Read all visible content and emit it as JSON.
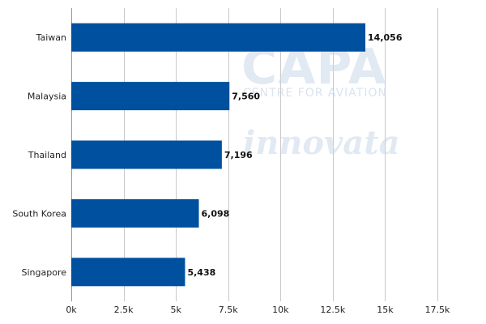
{
  "chart_data": {
    "type": "bar",
    "orientation": "horizontal",
    "title": "",
    "xlabel": "",
    "ylabel": "",
    "categories": [
      "Taiwan",
      "Malaysia",
      "Thailand",
      "South Korea",
      "Singapore"
    ],
    "values": [
      14056,
      7560,
      7196,
      6098,
      5438
    ],
    "data_labels": [
      "14,056",
      "7,560",
      "7,196",
      "6,098",
      "5,438"
    ],
    "xlim": [
      0,
      17500
    ],
    "ticks": [
      0,
      2500,
      5000,
      7500,
      10000,
      12500,
      15000,
      17500
    ],
    "tick_labels": [
      "0k",
      "2.5k",
      "5k",
      "7.5k",
      "10k",
      "12.5k",
      "15k",
      "17.5k"
    ],
    "grid": "vertical",
    "legend": "none",
    "bar_color": "#0050a0"
  },
  "watermark": {
    "logo_text": "CAPA",
    "logo_subtitle": "CENTRE FOR AVIATION",
    "partner_text": "innovata"
  }
}
